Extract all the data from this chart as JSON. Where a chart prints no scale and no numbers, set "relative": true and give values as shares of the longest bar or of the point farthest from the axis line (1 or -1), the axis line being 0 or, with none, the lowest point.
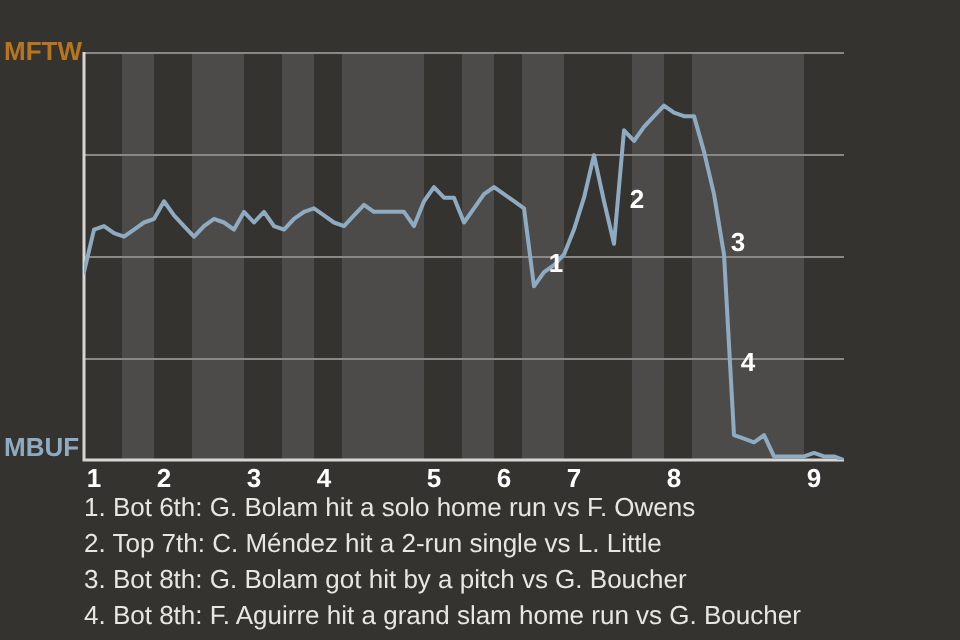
{
  "chart_data": {
    "type": "line",
    "relative": true,
    "categories": [
      null,
      "1",
      null,
      null,
      null,
      null,
      null,
      null,
      "2",
      null,
      null,
      null,
      null,
      null,
      null,
      null,
      null,
      "3",
      null,
      null,
      null,
      null,
      null,
      null,
      "4",
      null,
      null,
      null,
      null,
      null,
      null,
      null,
      null,
      null,
      null,
      "5",
      null,
      null,
      null,
      null,
      null,
      null,
      "6",
      null,
      null,
      null,
      null,
      null,
      null,
      "7",
      null,
      null,
      null,
      null,
      null,
      null,
      null,
      null,
      null,
      "8",
      null,
      null,
      null,
      null,
      null,
      null,
      null,
      null,
      null,
      null,
      null,
      null,
      null,
      "9",
      null,
      null,
      null
    ],
    "series": [
      {
        "color": "#8fabc2",
        "values": [
          0.53,
          0.65,
          0.66,
          0.64,
          0.63,
          0.65,
          0.67,
          0.68,
          0.73,
          0.69,
          0.66,
          0.63,
          0.66,
          0.68,
          0.67,
          0.65,
          0.7,
          0.67,
          0.7,
          0.66,
          0.65,
          0.68,
          0.7,
          0.71,
          0.69,
          0.67,
          0.66,
          0.69,
          0.72,
          0.7,
          0.7,
          0.7,
          0.7,
          0.66,
          0.73,
          0.77,
          0.74,
          0.74,
          0.67,
          0.71,
          0.75,
          0.77,
          0.75,
          0.73,
          0.71,
          0.49,
          0.53,
          0.55,
          0.58,
          0.65,
          0.74,
          0.86,
          0.73,
          0.61,
          0.93,
          0.9,
          0.94,
          0.97,
          1,
          0.98,
          0.97,
          0.97,
          0.87,
          0.75,
          0.58,
          0.07,
          0.06,
          0.05,
          0.07,
          0.01,
          0.01,
          0.01,
          0.01,
          0.02,
          0.01,
          0.01,
          0
        ]
      }
    ],
    "grid": "y",
    "marker": "none",
    "annotations": [
      "MFTW",
      "MBUF",
      "1",
      "2",
      "3",
      "4",
      "1. Bot 6th: G. Bolam hit a solo home run vs F. Owens",
      "2. Top 7th: C. Méndez hit a 2-run single vs L. Little",
      "3. Bot 8th: G. Bolam got hit by a pitch vs G. Boucher",
      "4. Bot 8th: F. Aguirre hit a grand slam home run vs G. Boucher"
    ]
  }
}
